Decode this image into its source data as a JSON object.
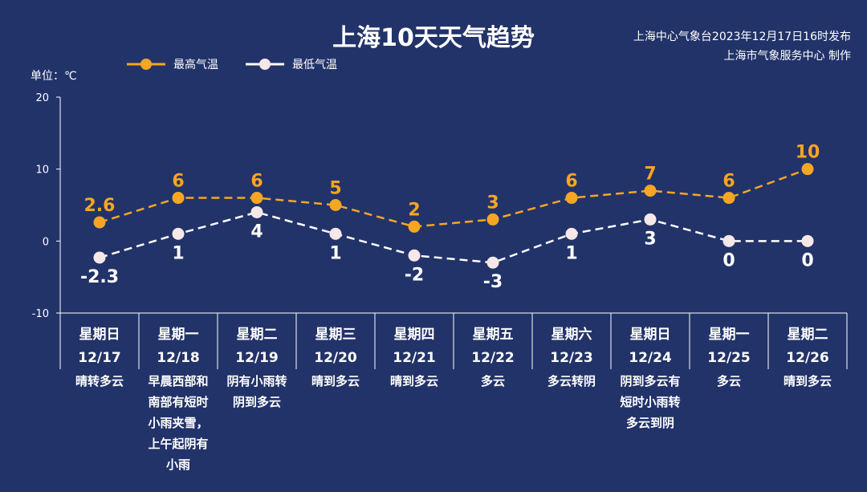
{
  "title": "上海10天天气趋势",
  "source": {
    "line1": "上海中心气象台2023年12月17日16时发布",
    "line2": "上海市气象服务中心 制作"
  },
  "unit_label": "单位：℃",
  "colors": {
    "background": "#22336a",
    "max_line": "#f5a623",
    "min_line": "#ffffff",
    "min_marker": "#f6e8e8"
  },
  "chart_data": {
    "type": "line",
    "title": "上海10天天气趋势",
    "ylabel": "单位：℃",
    "ylim": [
      -10,
      20
    ],
    "yticks": [
      -10,
      0,
      10,
      20
    ],
    "ytick_labels": [
      "-10",
      "0",
      "10",
      "20"
    ],
    "categories": [
      {
        "weekday": "星期日",
        "date": "12/17",
        "weather": [
          "晴转多云"
        ]
      },
      {
        "weekday": "星期一",
        "date": "12/18",
        "weather": [
          "早晨西部和",
          "南部有短时",
          "小雨夹雪，",
          "上午起阴有",
          "小雨"
        ]
      },
      {
        "weekday": "星期二",
        "date": "12/19",
        "weather": [
          "阴有小雨转",
          "阴到多云"
        ]
      },
      {
        "weekday": "星期三",
        "date": "12/20",
        "weather": [
          "晴到多云"
        ]
      },
      {
        "weekday": "星期四",
        "date": "12/21",
        "weather": [
          "晴到多云"
        ]
      },
      {
        "weekday": "星期五",
        "date": "12/22",
        "weather": [
          "多云"
        ]
      },
      {
        "weekday": "星期六",
        "date": "12/23",
        "weather": [
          "多云转阴"
        ]
      },
      {
        "weekday": "星期日",
        "date": "12/24",
        "weather": [
          "阴到多云有",
          "短时小雨转",
          "多云到阴"
        ]
      },
      {
        "weekday": "星期一",
        "date": "12/25",
        "weather": [
          "多云"
        ]
      },
      {
        "weekday": "星期二",
        "date": "12/26",
        "weather": [
          "晴到多云"
        ]
      }
    ],
    "series": [
      {
        "name": "最高气温",
        "values": [
          2.6,
          6,
          6,
          5,
          2,
          3,
          6,
          7,
          6,
          10
        ],
        "labels": [
          "2.6",
          "6",
          "6",
          "5",
          "2",
          "3",
          "6",
          "7",
          "6",
          "10"
        ]
      },
      {
        "name": "最低气温",
        "values": [
          -2.3,
          1,
          4,
          1,
          -2,
          -3,
          1,
          3,
          0,
          0
        ],
        "labels": [
          "-2.3",
          "1",
          "4",
          "1",
          "-2",
          "-3",
          "1",
          "3",
          "0",
          "0"
        ]
      }
    ]
  }
}
